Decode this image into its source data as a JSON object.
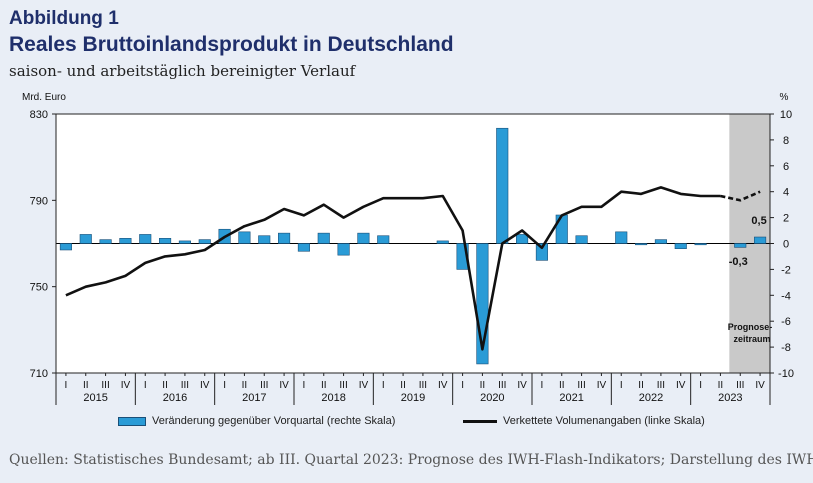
{
  "header": {
    "figure_label": "Abbildung 1",
    "title": "Reales Bruttoinlandsprodukt in Deutschland",
    "subtitle": "saison- und arbeitstäglich bereinigter Verlauf"
  },
  "legend": {
    "bars": "Veränderung gegenüber Vorquartal (rechte Skala)",
    "line": "Verkettete Volumenangaben (linke Skala)"
  },
  "source": "Quellen: Statistisches Bundesamt; ab III. Quartal 2023: Prognose des IWH-Flash-Indikators; Darstellung des IWH.",
  "colors": {
    "bar": "#2a9bd6",
    "bar_edge": "#1a4f78",
    "line": "#111111",
    "forecast_bg": "#c9c9c9",
    "background": "#e9eef6"
  },
  "chart_data": {
    "type": "bar+line",
    "left_axis": {
      "unit": "Mrd. Euro",
      "ylim": [
        710,
        830
      ],
      "ticks": [
        "710",
        "750",
        "790",
        "830"
      ]
    },
    "right_axis": {
      "unit": "%",
      "ylim": [
        -10,
        10
      ],
      "ticks": [
        "-10",
        "-8",
        "-6",
        "-4",
        "-2",
        "0",
        "2",
        "4",
        "6",
        "8",
        "10"
      ]
    },
    "quarters": [
      "I",
      "II",
      "III",
      "IV",
      "I",
      "II",
      "III",
      "IV",
      "I",
      "II",
      "III",
      "IV",
      "I",
      "II",
      "III",
      "IV",
      "I",
      "II",
      "III",
      "IV",
      "I",
      "II",
      "III",
      "IV",
      "I",
      "II",
      "III",
      "IV",
      "I",
      "II",
      "III",
      "IV",
      "I",
      "II",
      "III",
      "IV"
    ],
    "years": [
      "2015",
      "2016",
      "2017",
      "2018",
      "2019",
      "2020",
      "2021",
      "2022",
      "2023"
    ],
    "forecast_label": "Prognose-\nzeitraum",
    "series": [
      {
        "name": "Veränderung gegenüber Vorquartal (rechte Skala)",
        "type": "bar",
        "axis": "right",
        "values": [
          -0.5,
          0.7,
          0.3,
          0.4,
          0.7,
          0.4,
          0.2,
          0.3,
          1.1,
          0.9,
          0.6,
          0.8,
          -0.6,
          0.8,
          -0.9,
          0.8,
          0.6,
          null,
          null,
          0.2,
          -2.0,
          -9.3,
          8.9,
          0.7,
          -1.3,
          2.2,
          0.6,
          null,
          0.9,
          -0.1,
          0.3,
          -0.4,
          -0.1,
          null,
          -0.3,
          0.5
        ]
      },
      {
        "name": "Verkettete Volumenangaben (linke Skala)",
        "type": "line",
        "axis": "left",
        "values": [
          746,
          750,
          752,
          755,
          761,
          764,
          765,
          767,
          773,
          778,
          781,
          786,
          783,
          788,
          782,
          787,
          791,
          791,
          791,
          792,
          776,
          721,
          770,
          776,
          768,
          783,
          787,
          787,
          794,
          793,
          796,
          793,
          792,
          792,
          790,
          794
        ],
        "forecast_from_index": 33
      }
    ],
    "annotations": [
      "-0,3",
      "0,5"
    ]
  }
}
